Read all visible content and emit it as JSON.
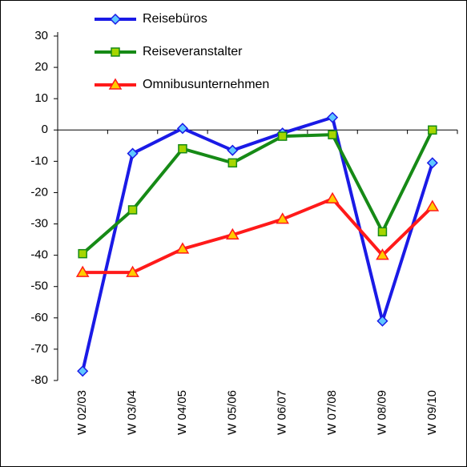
{
  "chart_data": {
    "type": "line",
    "categories": [
      "W 02/03",
      "W 03/04",
      "W 04/05",
      "W 05/06",
      "W 06/07",
      "W 07/08",
      "W 08/09",
      "W 09/10"
    ],
    "series": [
      {
        "name": "Reisebüros",
        "color": "#1a1ae6",
        "marker": "diamond",
        "marker_color": "#5fc8ff",
        "values": [
          -77,
          -7.5,
          0.5,
          -6.5,
          -1,
          4,
          -61,
          -10.5
        ]
      },
      {
        "name": "Reiseveranstalter",
        "color": "#168a16",
        "marker": "square",
        "marker_color": "#a6d600",
        "values": [
          -39.5,
          -25.5,
          -6,
          -10.5,
          -2,
          -1.5,
          -32.5,
          0
        ]
      },
      {
        "name": "Omnibusunternehmen",
        "color": "#ff1a1a",
        "marker": "triangle",
        "marker_color": "#ffcc00",
        "values": [
          -45.5,
          -45.5,
          -38,
          -33.5,
          -28.5,
          -22,
          -40,
          -24.5
        ]
      }
    ],
    "ylim": [
      -80,
      30
    ],
    "yticks": [
      -80,
      -70,
      -60,
      -50,
      -40,
      -30,
      -20,
      -10,
      0,
      10,
      20,
      30
    ],
    "legend": "top-left"
  }
}
